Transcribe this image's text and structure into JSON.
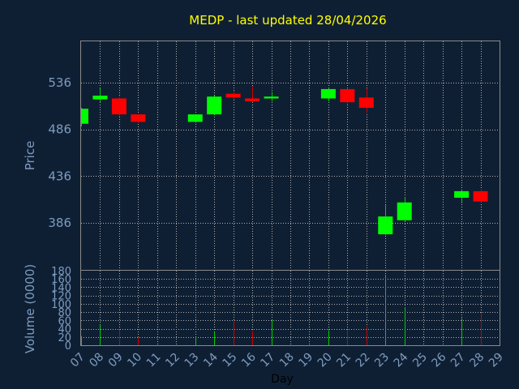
{
  "chart_data": {
    "type": "candlestick",
    "title": "MEDP - last updated 28/04/2026",
    "xlabel": "Day",
    "ylabel": "Price",
    "volume_label": "Volume (0000)",
    "x_ticks": [
      "07",
      "08",
      "09",
      "10",
      "11",
      "12",
      "13",
      "14",
      "15",
      "16",
      "17",
      "18",
      "19",
      "20",
      "21",
      "22",
      "23",
      "24",
      "25",
      "26",
      "27",
      "28",
      "29"
    ],
    "price_ticks": [
      536,
      486,
      436,
      386
    ],
    "price_range": [
      336,
      580
    ],
    "volume_ticks": [
      0,
      20,
      40,
      60,
      80,
      100,
      120,
      140,
      160,
      180
    ],
    "volume_range": [
      0,
      180
    ],
    "grid": true,
    "colors": {
      "up": "#00ff00",
      "down": "#ff0000",
      "wick_up": "#00cc00",
      "wick_down": "#cc0000",
      "title": "#ffff00",
      "text": "#7d9cc0",
      "background": "#0f1f33"
    },
    "candles": [
      {
        "day": "07",
        "open": 492,
        "high": 509,
        "low": 489,
        "close": 508
      },
      {
        "day": "08",
        "open": 518,
        "high": 530,
        "low": 515,
        "close": 522
      },
      {
        "day": "09",
        "open": 519,
        "high": 521,
        "low": 500,
        "close": 502
      },
      {
        "day": "10",
        "open": 502,
        "high": 502,
        "low": 493,
        "close": 494
      },
      {
        "day": "13",
        "open": 494,
        "high": 502,
        "low": 493,
        "close": 502
      },
      {
        "day": "14",
        "open": 502,
        "high": 522,
        "low": 501,
        "close": 521
      },
      {
        "day": "15",
        "open": 524,
        "high": 527,
        "low": 518,
        "close": 520
      },
      {
        "day": "16",
        "open": 519,
        "high": 532,
        "low": 515,
        "close": 516
      },
      {
        "day": "17",
        "open": 519,
        "high": 526,
        "low": 516,
        "close": 521
      },
      {
        "day": "20",
        "open": 519,
        "high": 530,
        "low": 516,
        "close": 529
      },
      {
        "day": "21",
        "open": 529,
        "high": 530,
        "low": 513,
        "close": 515
      },
      {
        "day": "22",
        "open": 520,
        "high": 530,
        "low": 504,
        "close": 509
      },
      {
        "day": "23",
        "open": 374,
        "high": 405,
        "low": 373,
        "close": 393
      },
      {
        "day": "24",
        "open": 389,
        "high": 414,
        "low": 388,
        "close": 408
      },
      {
        "day": "27",
        "open": 413,
        "high": 421,
        "low": 407,
        "close": 420
      },
      {
        "day": "28",
        "open": 420,
        "high": 422,
        "low": 408,
        "close": 409
      }
    ],
    "volumes": [
      {
        "day": "07",
        "value": 22
      },
      {
        "day": "08",
        "value": 50
      },
      {
        "day": "09",
        "value": 38
      },
      {
        "day": "10",
        "value": 20
      },
      {
        "day": "13",
        "value": 20
      },
      {
        "day": "14",
        "value": 32
      },
      {
        "day": "15",
        "value": 58
      },
      {
        "day": "16",
        "value": 35
      },
      {
        "day": "17",
        "value": 62
      },
      {
        "day": "20",
        "value": 36
      },
      {
        "day": "21",
        "value": 36
      },
      {
        "day": "22",
        "value": 46
      },
      {
        "day": "23",
        "value": 170
      },
      {
        "day": "24",
        "value": 92
      },
      {
        "day": "27",
        "value": 65
      },
      {
        "day": "28",
        "value": 78
      }
    ]
  }
}
